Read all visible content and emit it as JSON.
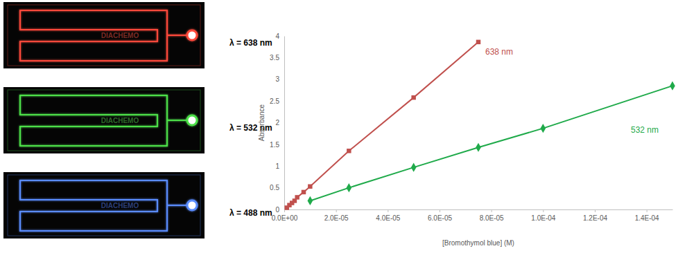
{
  "panels": [
    {
      "label": "λ = 638 nm",
      "device_text": "DIACHEMO"
    },
    {
      "label": "λ = 532 nm",
      "device_text": "DIACHEMO"
    },
    {
      "label": "λ = 488 nm",
      "device_text": "DIACHEMO"
    }
  ],
  "chart_data": {
    "type": "line",
    "x_label": "[Bromothymol blue] (M)",
    "y_label": "Absorbance",
    "xlim": [
      0,
      0.00015
    ],
    "xticks": [
      {
        "value": 0,
        "label": "0.0E+00"
      },
      {
        "value": 2e-05,
        "label": "2.0E-05"
      },
      {
        "value": 4e-05,
        "label": "4.0E-05"
      },
      {
        "value": 6e-05,
        "label": "6.0E-05"
      },
      {
        "value": 8e-05,
        "label": "8.0E-05"
      },
      {
        "value": 0.0001,
        "label": "1.0E-04"
      },
      {
        "value": 0.00012,
        "label": "1.2E-04"
      },
      {
        "value": 0.00014,
        "label": "1.4E-04"
      }
    ],
    "ylim": [
      0,
      4
    ],
    "yticks": [
      0,
      0.5,
      1,
      1.5,
      2,
      2.5,
      3,
      3.5,
      4
    ],
    "grid": false,
    "series": [
      {
        "name": "638 nm",
        "color": "#c0504d",
        "marker": "square",
        "x": [
          1e-06,
          2e-06,
          3e-06,
          4e-06,
          5e-06,
          7.5e-06,
          1e-05,
          2.5e-05,
          5e-05,
          7.5e-05
        ],
        "values": [
          0.04,
          0.1,
          0.15,
          0.2,
          0.28,
          0.4,
          0.53,
          1.35,
          2.58,
          3.86
        ]
      },
      {
        "name": "532 nm",
        "color": "#1faa4a",
        "marker": "diamond",
        "x": [
          1e-05,
          2.5e-05,
          5e-05,
          7.5e-05,
          0.0001,
          0.00015
        ],
        "values": [
          0.2,
          0.5,
          0.97,
          1.43,
          1.87,
          2.85
        ]
      }
    ]
  }
}
